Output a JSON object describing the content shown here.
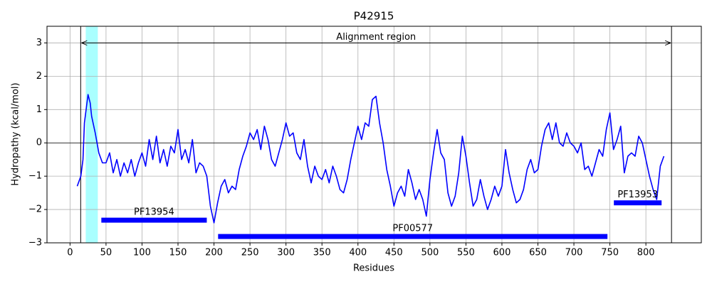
{
  "chart_data": {
    "type": "line",
    "title": "P42915",
    "x_label": "Residues",
    "y_label": "Hydropathy (kcal/mol)",
    "color": "#0000ff",
    "x": [
      10,
      15,
      18,
      20,
      25,
      28,
      30,
      35,
      40,
      45,
      50,
      55,
      60,
      65,
      70,
      75,
      80,
      85,
      90,
      95,
      100,
      105,
      110,
      115,
      120,
      125,
      130,
      135,
      140,
      145,
      150,
      155,
      160,
      165,
      170,
      175,
      180,
      185,
      190,
      195,
      200,
      205,
      210,
      215,
      220,
      225,
      230,
      235,
      240,
      245,
      250,
      255,
      260,
      265,
      270,
      275,
      280,
      285,
      290,
      295,
      300,
      305,
      310,
      315,
      320,
      325,
      330,
      335,
      340,
      345,
      350,
      355,
      360,
      365,
      370,
      375,
      380,
      385,
      390,
      395,
      400,
      405,
      410,
      415,
      420,
      425,
      430,
      435,
      440,
      445,
      450,
      455,
      460,
      465,
      470,
      475,
      480,
      485,
      490,
      495,
      500,
      505,
      510,
      515,
      520,
      525,
      530,
      535,
      540,
      545,
      550,
      555,
      560,
      565,
      570,
      575,
      580,
      585,
      590,
      595,
      600,
      605,
      610,
      615,
      620,
      625,
      630,
      635,
      640,
      645,
      650,
      655,
      660,
      665,
      670,
      675,
      680,
      685,
      690,
      695,
      700,
      705,
      710,
      715,
      720,
      725,
      730,
      735,
      740,
      745,
      750,
      755,
      760,
      765,
      770,
      775,
      780,
      785,
      790,
      795,
      800,
      805,
      810,
      815,
      820,
      825
    ],
    "values": [
      -1.3,
      -1.0,
      -0.5,
      0.6,
      1.45,
      1.2,
      0.8,
      0.3,
      -0.3,
      -0.6,
      -0.6,
      -0.3,
      -0.9,
      -0.5,
      -1.0,
      -0.6,
      -0.9,
      -0.5,
      -1.0,
      -0.6,
      -0.3,
      -0.7,
      0.1,
      -0.5,
      0.2,
      -0.6,
      -0.2,
      -0.7,
      -0.1,
      -0.3,
      0.4,
      -0.5,
      -0.2,
      -0.6,
      0.1,
      -0.9,
      -0.6,
      -0.7,
      -1.0,
      -1.9,
      -2.4,
      -1.8,
      -1.3,
      -1.1,
      -1.5,
      -1.3,
      -1.4,
      -0.8,
      -0.4,
      -0.1,
      0.3,
      0.1,
      0.4,
      -0.2,
      0.5,
      0.1,
      -0.5,
      -0.7,
      -0.3,
      0.1,
      0.6,
      0.2,
      0.3,
      -0.3,
      -0.5,
      0.1,
      -0.7,
      -1.2,
      -0.7,
      -1.0,
      -1.1,
      -0.8,
      -1.2,
      -0.7,
      -1.0,
      -1.4,
      -1.5,
      -1.1,
      -0.5,
      0.0,
      0.5,
      0.1,
      0.6,
      0.5,
      1.3,
      1.4,
      0.6,
      0.0,
      -0.8,
      -1.3,
      -1.9,
      -1.5,
      -1.3,
      -1.6,
      -0.8,
      -1.2,
      -1.7,
      -1.4,
      -1.7,
      -2.2,
      -1.1,
      -0.3,
      0.4,
      -0.3,
      -0.5,
      -1.5,
      -1.9,
      -1.6,
      -0.9,
      0.2,
      -0.4,
      -1.2,
      -1.9,
      -1.7,
      -1.1,
      -1.6,
      -2.0,
      -1.7,
      -1.3,
      -1.6,
      -1.3,
      -0.2,
      -0.9,
      -1.4,
      -1.8,
      -1.7,
      -1.4,
      -0.8,
      -0.5,
      -0.9,
      -0.8,
      -0.1,
      0.4,
      0.6,
      0.1,
      0.6,
      0.0,
      -0.1,
      0.3,
      0.0,
      -0.1,
      -0.3,
      0.0,
      -0.8,
      -0.7,
      -1.0,
      -0.6,
      -0.2,
      -0.4,
      0.4,
      0.9,
      -0.2,
      0.1,
      0.5,
      -0.9,
      -0.4,
      -0.3,
      -0.4,
      0.2,
      0.0,
      -0.5,
      -1.0,
      -1.4,
      -1.7,
      -0.7,
      -0.4
    ],
    "xlim": [
      -32,
      877
    ],
    "ylim": [
      -3,
      3.5
    ],
    "xticks": [
      0,
      50,
      100,
      150,
      200,
      250,
      300,
      350,
      400,
      450,
      500,
      550,
      600,
      650,
      700,
      750,
      800
    ],
    "yticks": [
      {
        "value": -3,
        "label": "−3"
      },
      {
        "value": -2,
        "label": "−2"
      },
      {
        "value": -1,
        "label": "−1"
      },
      0,
      1,
      2,
      3
    ],
    "grid": true,
    "hlines": [
      0
    ],
    "vlines": [
      14.8,
      835.6
    ],
    "spans": [
      {
        "range": [
          21.8,
          38.6
        ],
        "color": "#aaffff"
      }
    ],
    "annotations": [
      {
        "text": "Alignment region",
        "x": [
          14.8,
          835.6
        ],
        "y": 3
      }
    ],
    "domains": [
      {
        "name": "PF13954",
        "start": 43.5,
        "end": 190,
        "y": -2.32
      },
      {
        "name": "PF00577",
        "start": 205.7,
        "end": 746.6,
        "y": -2.81
      },
      {
        "name": "PF13953",
        "start": 755.5,
        "end": 821.8,
        "y": -1.8
      }
    ]
  }
}
